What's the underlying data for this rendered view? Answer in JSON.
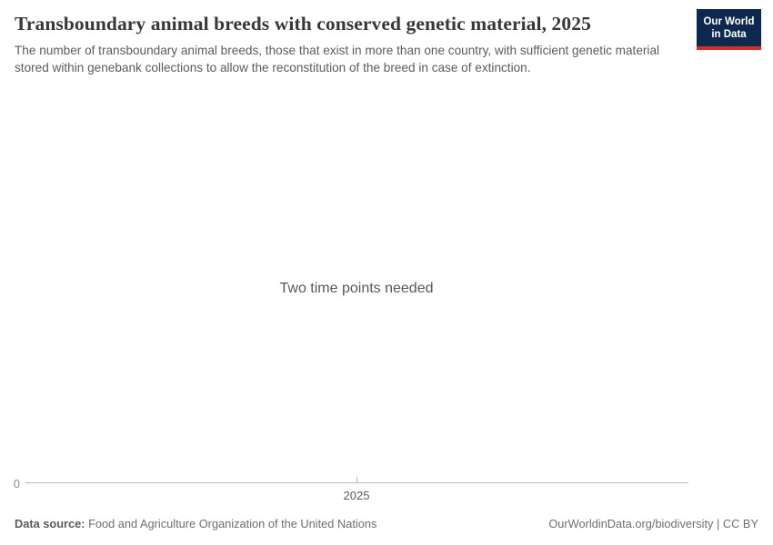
{
  "header": {
    "title": "Transboundary animal breeds with conserved genetic material, 2025",
    "subtitle": "The number of transboundary animal breeds, those that exist in more than one country, with sufficient genetic material stored within genebank collections to allow the reconstitution of the breed in case of extinction.",
    "logo": {
      "line1": "Our World",
      "line2": "in Data",
      "bg_color": "#0d2a4e",
      "stripe_color": "#cf2f2f"
    }
  },
  "chart": {
    "empty_message": "Two time points needed",
    "x_axis": {
      "tick_label": "2025"
    },
    "y_axis": {
      "zero_label": "0"
    },
    "axis_color": "#b9b9b9"
  },
  "chart_data": {
    "type": "line",
    "title": "Transboundary animal breeds with conserved genetic material, 2025",
    "subtitle": "The number of transboundary animal breeds, those that exist in more than one country, with sufficient genetic material stored within genebank collections to allow the reconstitution of the breed in case of extinction.",
    "series": [],
    "x": [
      2025
    ],
    "x_tick_labels": [
      "2025"
    ],
    "y_tick_labels": [
      "0"
    ],
    "ylim": [
      0,
      null
    ],
    "grid": false,
    "legend": false,
    "annotations": [
      "Two time points needed"
    ],
    "note": "Chart is empty; only a single time point (2025) exists, so no line can be drawn."
  },
  "footer": {
    "data_source_label": "Data source:",
    "data_source_value": " Food and Agriculture Organization of the United Nations",
    "attribution": "OurWorldinData.org/biodiversity | CC BY"
  }
}
